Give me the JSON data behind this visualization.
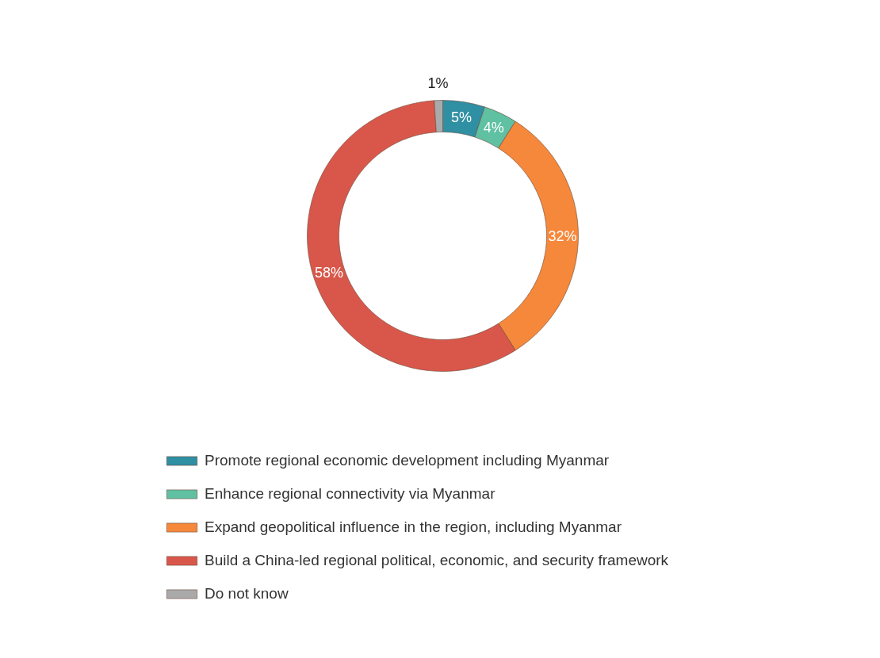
{
  "chart_data": {
    "type": "donut",
    "categories": [
      "Promote regional economic development including Myanmar",
      "Enhance regional connectivity via Myanmar",
      "Expand geopolitical influence in the region, including Myanmar",
      "Build a China-led regional political, economic, and security framework",
      "Do not know"
    ],
    "values": [
      5,
      4,
      32,
      58,
      1
    ],
    "colors": [
      "#2f8fa3",
      "#5fc0a2",
      "#f5883a",
      "#d9574a",
      "#aaaaaa"
    ],
    "value_labels": [
      "5%",
      "4%",
      "32%",
      "58%",
      "1%"
    ],
    "legend": "bottom"
  }
}
